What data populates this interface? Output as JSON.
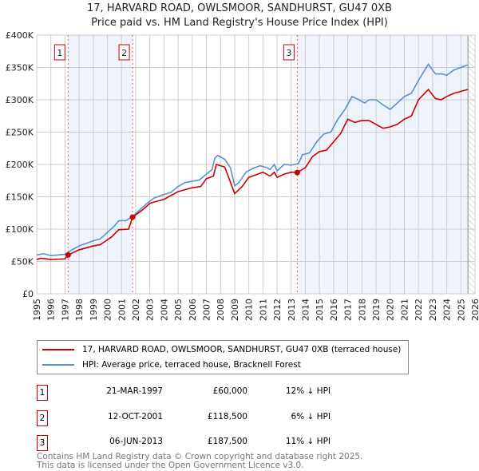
{
  "chart_data": {
    "type": "line",
    "title": "17, HARVARD ROAD, OWLSMOOR, SANDHURST, GU47 0XB",
    "subtitle": "Price paid vs. HM Land Registry's House Price Index (HPI)",
    "xlim": [
      1995,
      2026
    ],
    "ylim": [
      0,
      400000
    ],
    "yticks": [
      {
        "v": 0,
        "label": "£0"
      },
      {
        "v": 50000,
        "label": "£50K"
      },
      {
        "v": 100000,
        "label": "£100K"
      },
      {
        "v": 150000,
        "label": "£150K"
      },
      {
        "v": 200000,
        "label": "£200K"
      },
      {
        "v": 250000,
        "label": "£250K"
      },
      {
        "v": 300000,
        "label": "£300K"
      },
      {
        "v": 350000,
        "label": "£350K"
      },
      {
        "v": 400000,
        "label": "£400K"
      }
    ],
    "xticks": [
      "1995",
      "1996",
      "1997",
      "1998",
      "1999",
      "2000",
      "2001",
      "2002",
      "2003",
      "2004",
      "2005",
      "2006",
      "2007",
      "2008",
      "2009",
      "2010",
      "2011",
      "2012",
      "2013",
      "2014",
      "2015",
      "2016",
      "2017",
      "2018",
      "2019",
      "2020",
      "2021",
      "2022",
      "2023",
      "2024",
      "2025",
      "2026"
    ],
    "series": [
      {
        "name": "17, HARVARD ROAD, OWLSMOOR, SANDHURST, GU47 0XB (terraced house)",
        "color": "#cc0000",
        "x": [
          1995,
          1995.3,
          1996,
          1997,
          1997.22,
          1998,
          1999,
          1999.5,
          2000.3,
          2000.8,
          2001.5,
          2001.78,
          2002.5,
          2003,
          2004,
          2005,
          2006,
          2006.6,
          2007,
          2007.5,
          2007.7,
          2008.3,
          2009.0,
          2009.5,
          2010,
          2010.5,
          2011,
          2011.5,
          2011.8,
          2012,
          2012.5,
          2013,
          2013.43,
          2014,
          2014.5,
          2015,
          2015.5,
          2016,
          2016.5,
          2017,
          2017.5,
          2018,
          2018.5,
          2019,
          2019.5,
          2020,
          2020.5,
          2021,
          2021.5,
          2022,
          2022.7,
          2023.2,
          2023.6,
          2024,
          2024.5,
          2025.5
        ],
        "y": [
          53000,
          55000,
          53000,
          54000,
          60000,
          68000,
          74000,
          76000,
          88000,
          99000,
          100000,
          118500,
          130000,
          140000,
          146000,
          158000,
          164000,
          166000,
          178000,
          182000,
          200000,
          196000,
          155000,
          165000,
          180000,
          184000,
          188000,
          182000,
          188000,
          180000,
          185000,
          188000,
          187500,
          195000,
          212000,
          220000,
          222000,
          235000,
          248000,
          270000,
          265000,
          268000,
          268000,
          262000,
          256000,
          258000,
          262000,
          270000,
          275000,
          300000,
          316000,
          302000,
          300000,
          305000,
          310000,
          316000
        ]
      },
      {
        "name": "HPI: Average price, terraced house, Bracknell Forest",
        "color": "#5b8fd4",
        "x": [
          1995,
          1995.5,
          1996,
          1996.5,
          1997,
          1997.5,
          1998,
          1998.5,
          1999,
          1999.5,
          2000,
          2000.5,
          2000.8,
          2001.3,
          2001.8,
          2002.3,
          2002.8,
          2003.3,
          2003.8,
          2004.5,
          2005,
          2005.5,
          2006,
          2006.5,
          2007,
          2007.4,
          2007.6,
          2007.8,
          2008.3,
          2008.7,
          2009.0,
          2009.3,
          2009.8,
          2010.3,
          2010.8,
          2011.3,
          2011.5,
          2011.8,
          2012,
          2012.5,
          2013,
          2013.5,
          2013.8,
          2014.3,
          2014.8,
          2015.3,
          2015.8,
          2016.3,
          2016.8,
          2017.3,
          2017.8,
          2018.2,
          2018.5,
          2019,
          2019.5,
          2020,
          2020.5,
          2021,
          2021.5,
          2022,
          2022.7,
          2023.2,
          2023.7,
          2024,
          2024.5,
          2025,
          2025.5
        ],
        "y": [
          60000,
          62000,
          59000,
          60000,
          61000,
          68000,
          74000,
          78000,
          82000,
          85000,
          95000,
          105000,
          113000,
          113000,
          120000,
          130000,
          140000,
          148000,
          152000,
          157000,
          166000,
          172000,
          174000,
          176000,
          185000,
          192000,
          210000,
          214000,
          208000,
          195000,
          167000,
          172000,
          188000,
          194000,
          198000,
          195000,
          192000,
          200000,
          190000,
          200000,
          199000,
          201000,
          215000,
          218000,
          235000,
          247000,
          250000,
          270000,
          285000,
          305000,
          300000,
          295000,
          300000,
          300000,
          292000,
          285000,
          295000,
          305000,
          310000,
          330000,
          355000,
          340000,
          340000,
          338000,
          346000,
          350000,
          354000
        ]
      }
    ],
    "sales": [
      {
        "id": "1",
        "x": 1997.22,
        "price": 60000,
        "date": "21-MAR-1997",
        "price_label": "£60,000",
        "hpi": "12% ↓ HPI"
      },
      {
        "id": "2",
        "x": 2001.78,
        "price": 118500,
        "date": "12-OCT-2001",
        "price_label": "£118,500",
        "hpi": "6% ↓ HPI"
      },
      {
        "id": "3",
        "x": 2013.43,
        "price": 187500,
        "date": "06-JUN-2013",
        "price_label": "£187,500",
        "hpi": "11% ↓ HPI"
      }
    ],
    "shaded_ranges": [
      [
        1997.22,
        2001.78
      ],
      [
        2013.43,
        2025.5
      ]
    ],
    "data_end": 2025.5,
    "legend_placement": "below"
  },
  "footer": {
    "line1": "Contains HM Land Registry data © Crown copyright and database right 2025.",
    "line2": "This data is licensed under the Open Government Licence v3.0."
  }
}
